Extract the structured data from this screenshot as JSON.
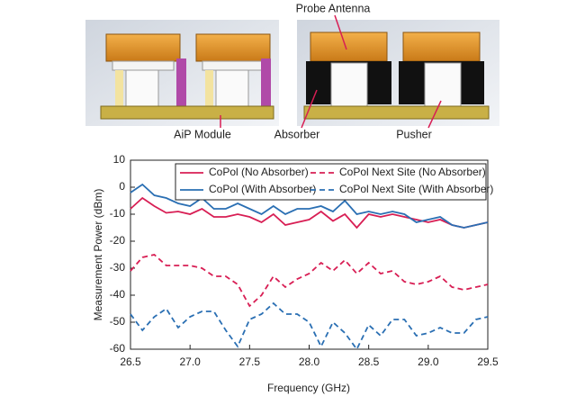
{
  "chart_data": {
    "type": "line",
    "annotations": [
      "Probe Antenna",
      "AiP Module",
      "Absorber",
      "Pusher"
    ],
    "xlabel": "Frequency (GHz)",
    "ylabel": "Measurement Power (dBm)",
    "x": [
      26.5,
      26.6,
      26.7,
      26.8,
      26.9,
      27.0,
      27.1,
      27.2,
      27.3,
      27.4,
      27.5,
      27.6,
      27.7,
      27.8,
      27.9,
      28.0,
      28.1,
      28.2,
      28.3,
      28.4,
      28.5,
      28.6,
      28.7,
      28.8,
      28.9,
      29.0,
      29.1,
      29.2,
      29.3,
      29.4,
      29.5
    ],
    "series": [
      {
        "name": "CoPol (No Absorber)",
        "color": "#d81e54",
        "dash": false,
        "values": [
          -8,
          -4,
          -7,
          -9.5,
          -9,
          -10,
          -8,
          -11,
          -11,
          -10,
          -11,
          -13,
          -10,
          -14,
          -13,
          -12,
          -9,
          -12.5,
          -10,
          -15,
          -10,
          -11,
          -10,
          -11,
          -12,
          -13,
          -12,
          -14,
          -15,
          -14,
          -13
        ]
      },
      {
        "name": "CoPol (With Absorber)",
        "color": "#2a6fb3",
        "dash": false,
        "values": [
          -2,
          1,
          -3,
          -4,
          -6,
          -7,
          -4,
          -8,
          -8,
          -6,
          -8,
          -10,
          -7,
          -10,
          -8,
          -8,
          -7,
          -9,
          -5,
          -10,
          -9,
          -10,
          -9,
          -10,
          -13,
          -12,
          -11,
          -14,
          -15,
          -14,
          -13
        ]
      },
      {
        "name": "CoPol Next Site (No Absorber)",
        "color": "#d81e54",
        "dash": true,
        "values": [
          -31,
          -26,
          -25,
          -29,
          -29,
          -29,
          -30,
          -33,
          -33,
          -36,
          -44,
          -40,
          -33,
          -37,
          -34,
          -32,
          -28,
          -31,
          -27,
          -32,
          -28,
          -32,
          -31,
          -35,
          -36,
          -35,
          -33,
          -37,
          -38,
          -37,
          -36
        ]
      },
      {
        "name": "CoPol Next Site (With Absorber)",
        "color": "#2a6fb3",
        "dash": true,
        "values": [
          -47,
          -53,
          -48,
          -45,
          -52,
          -48,
          -46,
          -46,
          -53,
          -59,
          -49,
          -47,
          -43,
          -47,
          -47,
          -50,
          -59,
          -50,
          -54,
          -60,
          -51,
          -55,
          -49,
          -49,
          -55,
          -54,
          -52,
          -54,
          -54,
          -49,
          -48
        ]
      }
    ],
    "xlim": [
      26.5,
      29.5
    ],
    "xticks": [
      26.5,
      {
        "value": 27,
        "label": "27.0"
      },
      27.5,
      {
        "value": 28,
        "label": "28.0"
      },
      28.5,
      {
        "value": 29,
        "label": "29.0"
      },
      29.5
    ],
    "ylim": [
      -60,
      10
    ],
    "yticks": [
      -60,
      -50,
      -40,
      -30,
      -20,
      -10,
      0,
      10
    ],
    "grid": false,
    "legend": "top"
  }
}
